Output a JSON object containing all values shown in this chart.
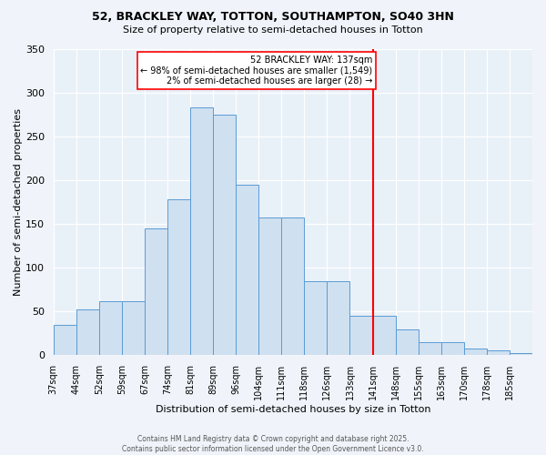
{
  "title": "52, BRACKLEY WAY, TOTTON, SOUTHAMPTON, SO40 3HN",
  "subtitle": "Size of property relative to semi-detached houses in Totton",
  "xlabel": "Distribution of semi-detached houses by size in Totton",
  "ylabel": "Number of semi-detached properties",
  "bar_color": "#cfe0f0",
  "bar_edge_color": "#5b9bd5",
  "background_color": "#e8f0f8",
  "grid_color": "#c8d8e8",
  "categories": [
    "37sqm",
    "44sqm",
    "52sqm",
    "59sqm",
    "67sqm",
    "74sqm",
    "81sqm",
    "89sqm",
    "96sqm",
    "104sqm",
    "111sqm",
    "118sqm",
    "126sqm",
    "133sqm",
    "141sqm",
    "148sqm",
    "155sqm",
    "163sqm",
    "170sqm",
    "178sqm",
    "185sqm"
  ],
  "bar_heights": [
    35,
    52,
    62,
    62,
    145,
    178,
    283,
    275,
    195,
    157,
    157,
    85,
    85,
    45,
    45,
    30,
    15,
    15,
    8,
    6,
    2
  ],
  "property_line_idx": 14,
  "annotation_title": "52 BRACKLEY WAY: 137sqm",
  "annotation_line1": "← 98% of semi-detached houses are smaller (1,549)",
  "annotation_line2": "2% of semi-detached houses are larger (28) →",
  "ylim": [
    0,
    350
  ],
  "yticks": [
    0,
    50,
    100,
    150,
    200,
    250,
    300,
    350
  ],
  "footer_line1": "Contains HM Land Registry data © Crown copyright and database right 2025.",
  "footer_line2": "Contains public sector information licensed under the Open Government Licence v3.0."
}
